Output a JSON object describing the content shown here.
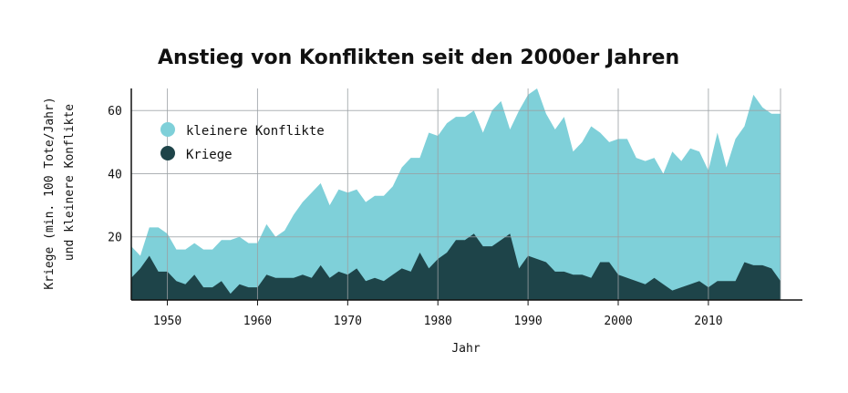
{
  "chart_data": {
    "type": "area",
    "title": "Anstieg von Konflikten seit den 2000er Jahren",
    "xlabel": "Jahr",
    "ylabel_line1": "Kriege (min. 100 Tote/Jahr)",
    "ylabel_line2": "und kleinere Konflikte",
    "xlim": [
      1946,
      2018
    ],
    "ylim": [
      0,
      67
    ],
    "x_ticks": [
      1950,
      1960,
      1970,
      1980,
      1990,
      2000,
      2010
    ],
    "y_ticks": [
      20,
      40,
      60
    ],
    "grid": true,
    "legend_position": "top-left",
    "x": [
      1946,
      1947,
      1948,
      1949,
      1950,
      1951,
      1952,
      1953,
      1954,
      1955,
      1956,
      1957,
      1958,
      1959,
      1960,
      1961,
      1962,
      1963,
      1964,
      1965,
      1966,
      1967,
      1968,
      1969,
      1970,
      1971,
      1972,
      1973,
      1974,
      1975,
      1976,
      1977,
      1978,
      1979,
      1980,
      1981,
      1982,
      1983,
      1984,
      1985,
      1986,
      1987,
      1988,
      1989,
      1990,
      1991,
      1992,
      1993,
      1994,
      1995,
      1996,
      1997,
      1998,
      1999,
      2000,
      2001,
      2002,
      2003,
      2004,
      2005,
      2006,
      2007,
      2008,
      2009,
      2010,
      2011,
      2012,
      2013,
      2014,
      2015,
      2016,
      2017,
      2018
    ],
    "series": [
      {
        "name": "kleinere Konflikte",
        "color": "#7fd0d9",
        "values": [
          17,
          14,
          23,
          23,
          21,
          16,
          16,
          18,
          16,
          16,
          19,
          19,
          20,
          18,
          18,
          24,
          20,
          22,
          27,
          31,
          34,
          37,
          30,
          35,
          34,
          35,
          31,
          33,
          33,
          36,
          42,
          45,
          45,
          53,
          52,
          56,
          58,
          58,
          60,
          53,
          60,
          63,
          54,
          60,
          65,
          67,
          59,
          54,
          58,
          47,
          50,
          55,
          53,
          50,
          51,
          51,
          45,
          44,
          45,
          40,
          47,
          44,
          48,
          47,
          41,
          53,
          42,
          51,
          55,
          65,
          61,
          59,
          59
        ]
      },
      {
        "name": "Kriege",
        "color": "#1e4449",
        "values": [
          7,
          10,
          14,
          9,
          9,
          6,
          5,
          8,
          4,
          4,
          6,
          2,
          5,
          4,
          4,
          8,
          7,
          7,
          7,
          8,
          7,
          11,
          7,
          9,
          8,
          10,
          6,
          7,
          6,
          8,
          10,
          9,
          15,
          10,
          13,
          15,
          19,
          19,
          21,
          17,
          17,
          19,
          21,
          10,
          14,
          13,
          12,
          9,
          9,
          8,
          8,
          7,
          12,
          12,
          8,
          7,
          6,
          5,
          7,
          5,
          3,
          4,
          5,
          6,
          4,
          6,
          6,
          6,
          12,
          11,
          11,
          10,
          6
        ]
      }
    ]
  }
}
